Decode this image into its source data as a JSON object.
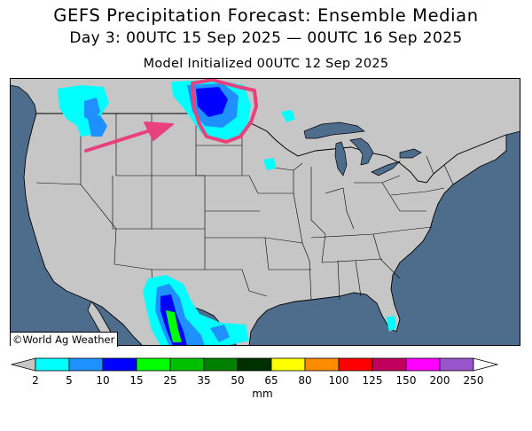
{
  "title": "GEFS Precipitation Forecast: Ensemble Median",
  "subtitle": "Day 3: 00UTC 15 Sep 2025 — 00UTC 16 Sep 2025",
  "initialized": "Model Initialized 00UTC 12 Sep 2025",
  "credit": "©World Ag Weather",
  "colors": {
    "ocean": "#4e6d8d",
    "land": "#c6c6c6",
    "lake": "#4e6d8d",
    "annotation": "#e8417e"
  },
  "colorbar": {
    "units": "mm",
    "bins": [
      {
        "from": 2,
        "to": 5,
        "color": "#00ffff"
      },
      {
        "from": 5,
        "to": 10,
        "color": "#1e90ff"
      },
      {
        "from": 10,
        "to": 15,
        "color": "#0000ff"
      },
      {
        "from": 15,
        "to": 25,
        "color": "#00ff00"
      },
      {
        "from": 25,
        "to": 35,
        "color": "#00c000"
      },
      {
        "from": 35,
        "to": 50,
        "color": "#008000"
      },
      {
        "from": 50,
        "to": 65,
        "color": "#003000"
      },
      {
        "from": 65,
        "to": 80,
        "color": "#ffff00"
      },
      {
        "from": 80,
        "to": 100,
        "color": "#ff8c00"
      },
      {
        "from": 100,
        "to": 125,
        "color": "#ff0000"
      },
      {
        "from": 125,
        "to": 150,
        "color": "#c0005a"
      },
      {
        "from": 150,
        "to": 200,
        "color": "#ff00ff"
      },
      {
        "from": 200,
        "to": 250,
        "color": "#9955cc"
      }
    ],
    "tick_labels": [
      "2",
      "5",
      "10",
      "15",
      "25",
      "35",
      "50",
      "65",
      "80",
      "100",
      "125",
      "150",
      "200",
      "250"
    ],
    "under_color": "#c6c6c6",
    "over_color": "#ffffff"
  }
}
